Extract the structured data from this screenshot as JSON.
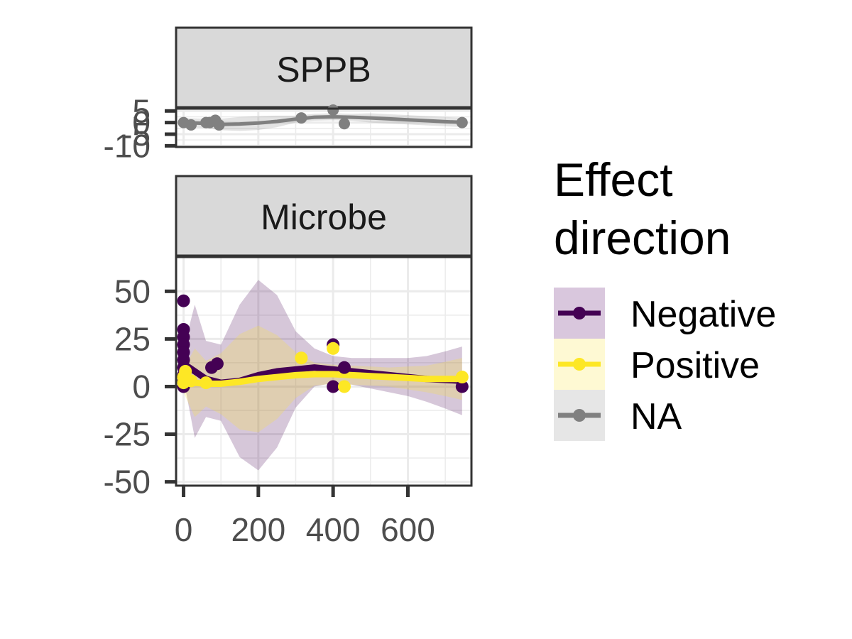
{
  "chart_data": [
    {
      "type": "scatter",
      "panel": "SPPB",
      "y_ticks": [
        5,
        0,
        -5,
        -10
      ],
      "y_tick_labels": [
        "5",
        "0",
        "-5",
        "-10"
      ],
      "ylim": [
        -10.5,
        6
      ],
      "xlim": [
        -20,
        770
      ],
      "grid": true,
      "series": [
        {
          "name": "NA",
          "color": "#808080",
          "points": [
            [
              0,
              0
            ],
            [
              20,
              -1
            ],
            [
              60,
              0
            ],
            [
              70,
              0
            ],
            [
              85,
              1
            ],
            [
              95,
              -1
            ],
            [
              315,
              2
            ],
            [
              400,
              6
            ],
            [
              430,
              -0.5
            ],
            [
              745,
              0
            ]
          ],
          "smooth": [
            [
              0,
              0
            ],
            [
              50,
              -0.3
            ],
            [
              100,
              -0.8
            ],
            [
              150,
              -0.6
            ],
            [
              200,
              -0.2
            ],
            [
              250,
              0.5
            ],
            [
              300,
              1.5
            ],
            [
              350,
              2.3
            ],
            [
              400,
              2.5
            ],
            [
              450,
              2.3
            ],
            [
              500,
              2.0
            ],
            [
              550,
              1.6
            ],
            [
              600,
              1.2
            ],
            [
              650,
              0.8
            ],
            [
              700,
              0.4
            ],
            [
              745,
              0.1
            ]
          ],
          "ci_half_width": [
            2,
            2,
            2.5,
            3,
            3,
            2.5,
            1.5,
            1.5,
            1.5,
            1.5,
            2,
            2,
            2,
            2,
            2,
            2
          ]
        }
      ]
    },
    {
      "type": "scatter",
      "panel": "Microbe",
      "y_ticks": [
        50,
        25,
        0,
        -25,
        -50
      ],
      "y_tick_labels": [
        "50",
        "25",
        "0",
        "-25",
        "-50"
      ],
      "x_ticks": [
        0,
        200,
        400,
        600
      ],
      "x_tick_labels": [
        "0",
        "200",
        "400",
        "600"
      ],
      "ylim": [
        -52,
        68
      ],
      "xlim": [
        -20,
        770
      ],
      "grid": true,
      "legend_position": "right",
      "series": [
        {
          "name": "Negative",
          "color": "#440154",
          "points": [
            [
              0,
              45
            ],
            [
              0,
              30
            ],
            [
              0,
              26
            ],
            [
              0,
              22
            ],
            [
              0,
              18
            ],
            [
              0,
              14
            ],
            [
              0,
              10
            ],
            [
              0,
              6
            ],
            [
              0,
              3
            ],
            [
              0,
              0
            ],
            [
              75,
              10
            ],
            [
              90,
              12
            ],
            [
              400,
              22
            ],
            [
              400,
              0
            ],
            [
              430,
              10
            ],
            [
              745,
              0
            ]
          ],
          "smooth": [
            [
              0,
              12
            ],
            [
              30,
              8
            ],
            [
              60,
              4
            ],
            [
              100,
              2
            ],
            [
              150,
              3
            ],
            [
              200,
              6
            ],
            [
              250,
              8
            ],
            [
              300,
              9
            ],
            [
              350,
              10
            ],
            [
              400,
              9
            ],
            [
              450,
              8
            ],
            [
              500,
              7
            ],
            [
              550,
              6
            ],
            [
              600,
              5
            ],
            [
              650,
              4
            ],
            [
              700,
              3.5
            ],
            [
              745,
              3
            ]
          ],
          "ci_half_width": [
            8,
            35,
            20,
            20,
            40,
            50,
            40,
            20,
            10,
            7,
            7,
            8,
            9,
            10,
            12,
            15,
            18
          ]
        },
        {
          "name": "Positive",
          "color": "#FDE725",
          "points": [
            [
              0,
              2
            ],
            [
              0,
              5
            ],
            [
              5,
              8
            ],
            [
              20,
              3
            ],
            [
              60,
              2
            ],
            [
              315,
              15
            ],
            [
              400,
              20
            ],
            [
              430,
              0
            ],
            [
              745,
              5
            ]
          ],
          "smooth": [
            [
              0,
              3
            ],
            [
              30,
              2
            ],
            [
              60,
              1.5
            ],
            [
              100,
              1.5
            ],
            [
              150,
              2.5
            ],
            [
              200,
              4
            ],
            [
              250,
              5
            ],
            [
              300,
              6
            ],
            [
              350,
              6.5
            ],
            [
              400,
              6.5
            ],
            [
              450,
              6
            ],
            [
              500,
              5.5
            ],
            [
              550,
              5
            ],
            [
              600,
              4.5
            ],
            [
              650,
              4
            ],
            [
              700,
              4
            ],
            [
              745,
              4
            ]
          ],
          "ci_half_width": [
            6,
            18,
            12,
            16,
            25,
            28,
            22,
            12,
            6,
            5,
            5,
            5,
            5,
            6,
            7,
            9,
            11
          ]
        }
      ]
    }
  ],
  "legend": {
    "title_line1": "Effect",
    "title_line2": "direction",
    "items": [
      {
        "label": "Negative",
        "color": "#440154",
        "fill": "#D9C7DD"
      },
      {
        "label": "Positive",
        "color": "#FDE725",
        "fill": "#FEF9D3"
      },
      {
        "label": "NA",
        "color": "#808080",
        "fill": "#E6E6E6"
      }
    ]
  }
}
